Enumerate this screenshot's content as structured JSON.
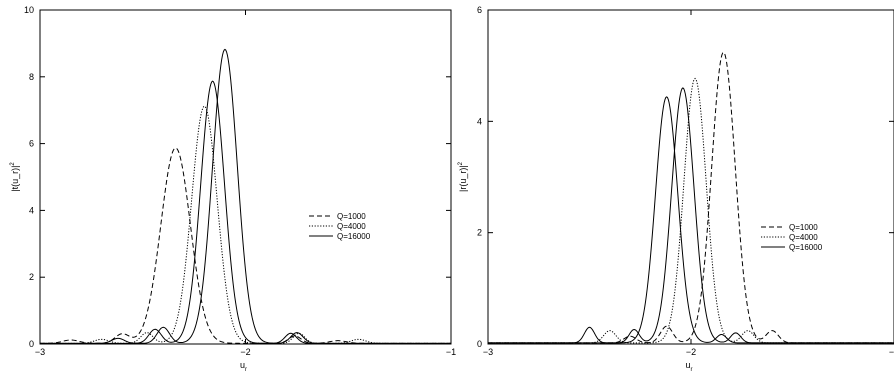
{
  "chart_data": [
    {
      "type": "line",
      "ylabel": "|t(u_r)|",
      "ylabel_exp": "2",
      "xlabel": "u",
      "xlabel_sub": "r",
      "xlim": [
        -3,
        -1
      ],
      "ylim": [
        0,
        10
      ],
      "xticks": [
        -3,
        -2,
        -1
      ],
      "yticks": [
        0,
        2,
        4,
        6,
        8,
        10
      ],
      "grid": false,
      "legend_position": "center-right",
      "series": [
        {
          "name": "Q=1000",
          "dash": "dashed",
          "peaks": [
            {
              "x": -2.34,
              "h": 5.85,
              "w": 0.072
            },
            {
              "x": -2.6,
              "h": 0.28,
              "w": 0.035
            },
            {
              "x": -1.76,
              "h": 0.22,
              "w": 0.03
            },
            {
              "x": -1.55,
              "h": 0.08,
              "w": 0.04
            },
            {
              "x": -2.85,
              "h": 0.1,
              "w": 0.04
            }
          ]
        },
        {
          "name": "Q=4000",
          "dash": "dotted",
          "peaks": [
            {
              "x": -2.2,
              "h": 7.1,
              "w": 0.062
            },
            {
              "x": -2.48,
              "h": 0.32,
              "w": 0.03
            },
            {
              "x": -1.74,
              "h": 0.3,
              "w": 0.028
            },
            {
              "x": -1.45,
              "h": 0.12,
              "w": 0.035
            },
            {
              "x": -2.7,
              "h": 0.12,
              "w": 0.035
            }
          ]
        },
        {
          "name": "Q=16000",
          "dash": "solid",
          "peaks": [
            {
              "x": -2.16,
              "h": 7.85,
              "w": 0.058
            },
            {
              "x": -2.44,
              "h": 0.42,
              "w": 0.03
            },
            {
              "x": -1.78,
              "h": 0.3,
              "w": 0.028
            },
            {
              "x": -2.62,
              "h": 0.15,
              "w": 0.03
            }
          ]
        },
        {
          "name": "",
          "dash": "solid",
          "peaks": [
            {
              "x": -2.1,
              "h": 8.8,
              "w": 0.06
            },
            {
              "x": -2.4,
              "h": 0.48,
              "w": 0.03
            },
            {
              "x": -1.75,
              "h": 0.32,
              "w": 0.03
            }
          ]
        }
      ],
      "legend": [
        "Q=1000",
        "Q=4000",
        "Q=16000"
      ]
    },
    {
      "type": "line",
      "ylabel": "|r(u_r)|",
      "ylabel_exp": "2",
      "xlabel": "u",
      "xlabel_sub": "r",
      "xlim": [
        -3,
        -1
      ],
      "ylim": [
        0,
        6
      ],
      "xticks": [
        -3,
        -2,
        -1
      ],
      "yticks": [
        0,
        2,
        4,
        6
      ],
      "grid": false,
      "legend_position": "center-right",
      "series": [
        {
          "name": "Q=1000",
          "dash": "dashed",
          "peaks": [
            {
              "x": -1.84,
              "h": 5.22,
              "w": 0.058
            },
            {
              "x": -2.12,
              "h": 0.3,
              "w": 0.03
            },
            {
              "x": -1.6,
              "h": 0.22,
              "w": 0.03
            },
            {
              "x": -2.3,
              "h": 0.12,
              "w": 0.03
            }
          ]
        },
        {
          "name": "Q=4000",
          "dash": "dotted",
          "peaks": [
            {
              "x": -1.98,
              "h": 4.75,
              "w": 0.055
            },
            {
              "x": -2.4,
              "h": 0.22,
              "w": 0.03
            },
            {
              "x": -1.72,
              "h": 0.22,
              "w": 0.03
            }
          ]
        },
        {
          "name": "Q=16000",
          "dash": "solid",
          "peaks": [
            {
              "x": -2.04,
              "h": 4.58,
              "w": 0.055
            },
            {
              "x": -2.28,
              "h": 0.24,
              "w": 0.025
            },
            {
              "x": -1.78,
              "h": 0.18,
              "w": 0.025
            }
          ]
        },
        {
          "name": "",
          "dash": "solid",
          "peaks": [
            {
              "x": -2.12,
              "h": 4.42,
              "w": 0.055
            },
            {
              "x": -2.5,
              "h": 0.28,
              "w": 0.025
            },
            {
              "x": -1.85,
              "h": 0.15,
              "w": 0.025
            }
          ]
        }
      ],
      "legend": [
        "Q=1000",
        "Q=4000",
        "Q=16000"
      ]
    }
  ]
}
